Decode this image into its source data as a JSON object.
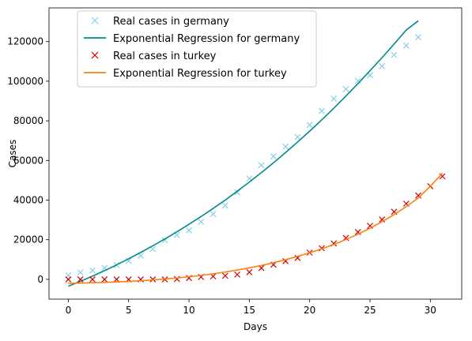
{
  "chart_data": {
    "type": "scatter",
    "xlabel": "Days",
    "ylabel": "Cases",
    "xlim": [
      -1.6,
      32.6
    ],
    "ylim": [
      -10000,
      137000
    ],
    "xticks": [
      0,
      5,
      10,
      15,
      20,
      25,
      30
    ],
    "yticks": [
      0,
      20000,
      40000,
      60000,
      80000,
      100000,
      120000
    ],
    "grid": false,
    "legend_position": "top-left",
    "series": [
      {
        "name": "Real cases in germany",
        "kind": "scatter",
        "marker": "x",
        "color": "#87ceeb",
        "x": [
          0,
          1,
          2,
          3,
          4,
          5,
          6,
          7,
          8,
          9,
          10,
          11,
          12,
          13,
          14,
          15,
          16,
          17,
          18,
          19,
          20,
          21,
          22,
          23,
          24,
          25,
          26,
          27,
          28,
          29
        ],
        "y": [
          2000,
          3500,
          4500,
          5700,
          7200,
          9300,
          12000,
          15300,
          19800,
          22400,
          24800,
          29000,
          33000,
          37300,
          43900,
          50900,
          57600,
          62100,
          67000,
          71800,
          77900,
          85000,
          91200,
          96000,
          100100,
          103000,
          107600,
          113300,
          118000,
          122200
        ]
      },
      {
        "name": "Exponential Regression for germany",
        "kind": "line",
        "color": "#008b8b",
        "x": [
          0,
          1,
          2,
          3,
          4,
          5,
          6,
          7,
          8,
          9,
          10,
          11,
          12,
          13,
          14,
          15,
          16,
          17,
          18,
          19,
          20,
          21,
          22,
          23,
          24,
          25,
          26,
          27,
          28,
          29
        ],
        "y": [
          -3500,
          -1000,
          1600,
          4400,
          7300,
          10400,
          13600,
          16900,
          20400,
          24000,
          27800,
          31700,
          35800,
          40000,
          44500,
          49100,
          53900,
          58800,
          64000,
          69300,
          74800,
          80500,
          86400,
          92500,
          98800,
          105300,
          111900,
          118800,
          125800,
          130500
        ]
      },
      {
        "name": "Real cases in turkey",
        "kind": "scatter",
        "marker": "x",
        "color": "#cc0000",
        "x": [
          0,
          1,
          2,
          3,
          4,
          5,
          6,
          7,
          8,
          9,
          10,
          11,
          12,
          13,
          14,
          15,
          16,
          17,
          18,
          19,
          20,
          21,
          22,
          23,
          24,
          25,
          26,
          27,
          28,
          29,
          30,
          31
        ],
        "y": [
          0,
          0,
          0,
          0,
          0,
          0,
          0,
          0,
          0,
          200,
          700,
          1200,
          1500,
          1800,
          2400,
          3600,
          5700,
          7400,
          9200,
          10800,
          13500,
          15700,
          18100,
          20900,
          23900,
          27000,
          30200,
          34100,
          38200,
          42300,
          47000,
          52000
        ]
      },
      {
        "name": "Exponential Regression for turkey",
        "kind": "line",
        "color": "#ff7f0e",
        "x": [
          0,
          1,
          2,
          3,
          4,
          5,
          6,
          7,
          8,
          9,
          10,
          11,
          12,
          13,
          14,
          15,
          16,
          17,
          18,
          19,
          20,
          21,
          22,
          23,
          24,
          25,
          26,
          27,
          28,
          29,
          30,
          31
        ],
        "y": [
          -2000,
          -1900,
          -1700,
          -1500,
          -1300,
          -1000,
          -700,
          -300,
          200,
          700,
          1300,
          2000,
          2800,
          3700,
          4700,
          5800,
          7000,
          8400,
          9900,
          11600,
          13400,
          15400,
          17600,
          20100,
          22800,
          25800,
          29100,
          32700,
          36700,
          41100,
          47000,
          53500
        ]
      }
    ]
  }
}
